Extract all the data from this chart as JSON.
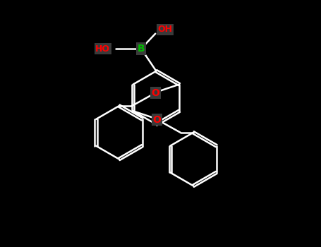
{
  "background_color": "#000000",
  "bond_color": "#ffffff",
  "bond_width": 1.8,
  "B_color": "#00bb00",
  "O_color": "#ff0000",
  "B_label": "B",
  "OH_label": "OH",
  "HO_label": "HO",
  "O_label": "O",
  "figsize": [
    4.55,
    3.5
  ],
  "dpi": 100
}
